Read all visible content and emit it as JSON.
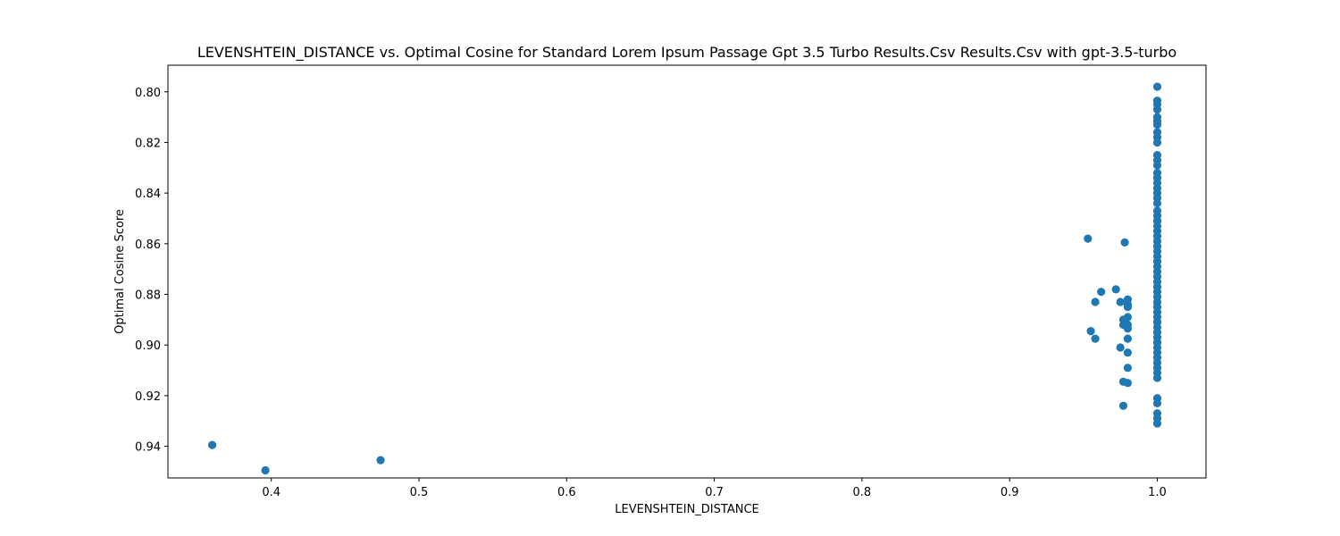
{
  "chart_data": {
    "type": "scatter",
    "title": "LEVENSHTEIN_DISTANCE vs. Optimal Cosine for Standard Lorem Ipsum Passage Gpt 3.5 Turbo Results.Csv Results.Csv with gpt-3.5-turbo",
    "xlabel": "LEVENSHTEIN_DISTANCE",
    "ylabel": "Optimal Cosine Score",
    "xlim": [
      0.33,
      1.033
    ],
    "ylim": [
      0.9525,
      0.7895
    ],
    "y_inverted": true,
    "x_ticks": [
      0.4,
      0.5,
      0.6,
      0.7,
      0.8,
      0.9,
      1.0
    ],
    "x_tick_labels": [
      "0.4",
      "0.5",
      "0.6",
      "0.7",
      "0.8",
      "0.9",
      "1.0"
    ],
    "y_ticks": [
      0.8,
      0.82,
      0.84,
      0.86,
      0.88,
      0.9,
      0.92,
      0.94
    ],
    "y_tick_labels": [
      "0.80",
      "0.82",
      "0.84",
      "0.86",
      "0.88",
      "0.90",
      "0.92",
      "0.94"
    ],
    "grid": false,
    "marker_color": "#1f77b4",
    "series": [
      {
        "points": [
          [
            0.36,
            0.9395
          ],
          [
            0.396,
            0.9495
          ],
          [
            0.474,
            0.9455
          ],
          [
            0.953,
            0.858
          ],
          [
            0.955,
            0.8945
          ],
          [
            0.958,
            0.883
          ],
          [
            0.958,
            0.8975
          ],
          [
            0.962,
            0.879
          ],
          [
            0.972,
            0.878
          ],
          [
            0.975,
            0.883
          ],
          [
            0.975,
            0.901
          ],
          [
            0.977,
            0.89
          ],
          [
            0.977,
            0.892
          ],
          [
            0.977,
            0.9145
          ],
          [
            0.977,
            0.924
          ],
          [
            0.978,
            0.8595
          ],
          [
            0.98,
            0.882
          ],
          [
            0.98,
            0.884
          ],
          [
            0.98,
            0.885
          ],
          [
            0.98,
            0.889
          ],
          [
            0.98,
            0.892
          ],
          [
            0.98,
            0.8935
          ],
          [
            0.98,
            0.8975
          ],
          [
            0.98,
            0.903
          ],
          [
            0.98,
            0.909
          ],
          [
            0.98,
            0.915
          ],
          [
            1.0,
            0.798
          ],
          [
            1.0,
            0.8035
          ],
          [
            1.0,
            0.805
          ],
          [
            1.0,
            0.807
          ],
          [
            1.0,
            0.81
          ],
          [
            1.0,
            0.8115
          ],
          [
            1.0,
            0.813
          ],
          [
            1.0,
            0.816
          ],
          [
            1.0,
            0.818
          ],
          [
            1.0,
            0.82
          ],
          [
            1.0,
            0.825
          ],
          [
            1.0,
            0.827
          ],
          [
            1.0,
            0.829
          ],
          [
            1.0,
            0.832
          ],
          [
            1.0,
            0.834
          ],
          [
            1.0,
            0.836
          ],
          [
            1.0,
            0.838
          ],
          [
            1.0,
            0.84
          ],
          [
            1.0,
            0.842
          ],
          [
            1.0,
            0.844
          ],
          [
            1.0,
            0.847
          ],
          [
            1.0,
            0.849
          ],
          [
            1.0,
            0.851
          ],
          [
            1.0,
            0.853
          ],
          [
            1.0,
            0.855
          ],
          [
            1.0,
            0.857
          ],
          [
            1.0,
            0.859
          ],
          [
            1.0,
            0.861
          ],
          [
            1.0,
            0.863
          ],
          [
            1.0,
            0.865
          ],
          [
            1.0,
            0.867
          ],
          [
            1.0,
            0.869
          ],
          [
            1.0,
            0.871
          ],
          [
            1.0,
            0.873
          ],
          [
            1.0,
            0.875
          ],
          [
            1.0,
            0.877
          ],
          [
            1.0,
            0.879
          ],
          [
            1.0,
            0.881
          ],
          [
            1.0,
            0.883
          ],
          [
            1.0,
            0.885
          ],
          [
            1.0,
            0.887
          ],
          [
            1.0,
            0.889
          ],
          [
            1.0,
            0.891
          ],
          [
            1.0,
            0.893
          ],
          [
            1.0,
            0.895
          ],
          [
            1.0,
            0.897
          ],
          [
            1.0,
            0.899
          ],
          [
            1.0,
            0.901
          ],
          [
            1.0,
            0.903
          ],
          [
            1.0,
            0.905
          ],
          [
            1.0,
            0.907
          ],
          [
            1.0,
            0.909
          ],
          [
            1.0,
            0.911
          ],
          [
            1.0,
            0.913
          ],
          [
            1.0,
            0.921
          ],
          [
            1.0,
            0.923
          ],
          [
            1.0,
            0.927
          ],
          [
            1.0,
            0.929
          ],
          [
            1.0,
            0.931
          ]
        ]
      }
    ]
  }
}
